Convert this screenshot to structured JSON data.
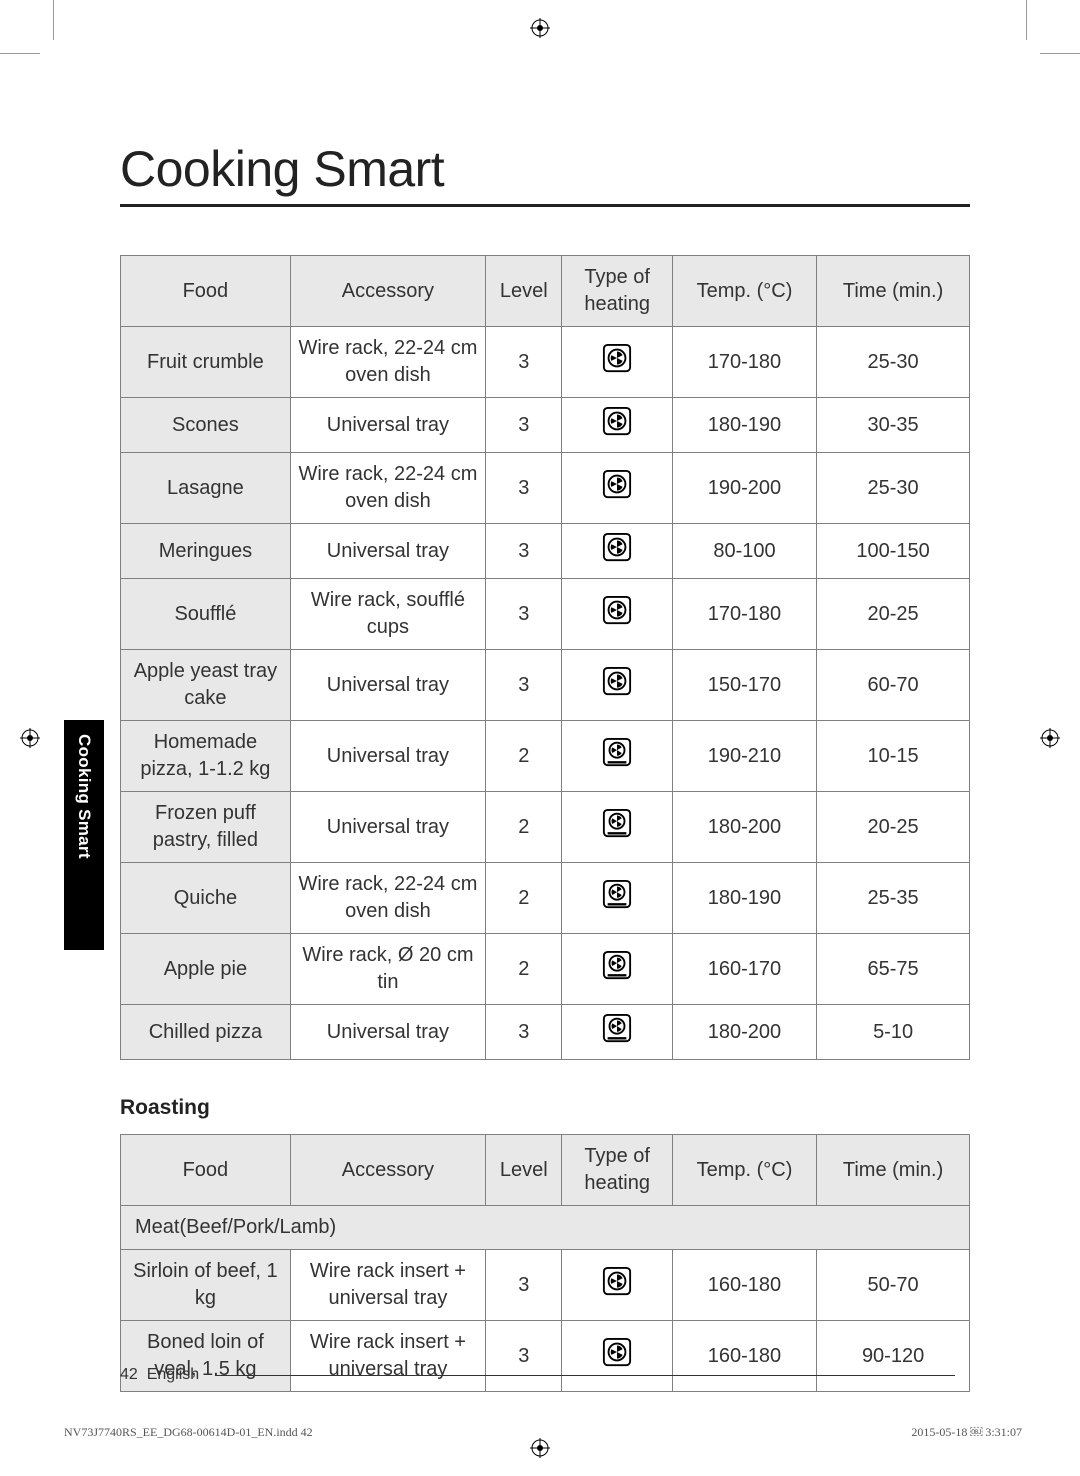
{
  "title": "Cooking Smart",
  "side_tab": "Cooking Smart",
  "table1": {
    "headers": [
      "Food",
      "Accessory",
      "Level",
      "Type of heating",
      "Temp. (°C)",
      "Time (min.)"
    ],
    "rows": [
      {
        "food": "Fruit crumble",
        "accessory": "Wire rack, 22-24 cm oven dish",
        "level": "3",
        "heat_icon": "fan-box",
        "temp": "170-180",
        "time": "25-30"
      },
      {
        "food": "Scones",
        "accessory": "Universal tray",
        "level": "3",
        "heat_icon": "fan-box",
        "temp": "180-190",
        "time": "30-35"
      },
      {
        "food": "Lasagne",
        "accessory": "Wire rack, 22-24 cm oven dish",
        "level": "3",
        "heat_icon": "fan-box",
        "temp": "190-200",
        "time": "25-30"
      },
      {
        "food": "Meringues",
        "accessory": "Universal tray",
        "level": "3",
        "heat_icon": "fan-box",
        "temp": "80-100",
        "time": "100-150"
      },
      {
        "food": "Soufflé",
        "accessory": "Wire rack, soufflé cups",
        "level": "3",
        "heat_icon": "fan-box",
        "temp": "170-180",
        "time": "20-25"
      },
      {
        "food": "Apple yeast tray cake",
        "accessory": "Universal tray",
        "level": "3",
        "heat_icon": "fan-box",
        "temp": "150-170",
        "time": "60-70"
      },
      {
        "food": "Homemade pizza, 1-1.2 kg",
        "accessory": "Universal tray",
        "level": "2",
        "heat_icon": "fan-bottom",
        "temp": "190-210",
        "time": "10-15"
      },
      {
        "food": "Frozen puff pastry, filled",
        "accessory": "Universal tray",
        "level": "2",
        "heat_icon": "fan-bottom",
        "temp": "180-200",
        "time": "20-25"
      },
      {
        "food": "Quiche",
        "accessory": "Wire rack, 22-24 cm oven dish",
        "level": "2",
        "heat_icon": "fan-bottom",
        "temp": "180-190",
        "time": "25-35"
      },
      {
        "food": "Apple pie",
        "accessory": "Wire rack, Ø 20 cm tin",
        "level": "2",
        "heat_icon": "fan-bottom",
        "temp": "160-170",
        "time": "65-75"
      },
      {
        "food": "Chilled pizza",
        "accessory": "Universal tray",
        "level": "3",
        "heat_icon": "fan-bottom",
        "temp": "180-200",
        "time": "5-10"
      }
    ]
  },
  "roasting_heading": "Roasting",
  "table2": {
    "headers": [
      "Food",
      "Accessory",
      "Level",
      "Type of heating",
      "Temp. (°C)",
      "Time (min.)"
    ],
    "section_label": "Meat(Beef/Pork/Lamb)",
    "rows": [
      {
        "food": "Sirloin of beef, 1 kg",
        "accessory": "Wire rack insert + universal tray",
        "level": "3",
        "heat_icon": "fan-box",
        "temp": "160-180",
        "time": "50-70"
      },
      {
        "food": "Boned loin of veal, 1.5 kg",
        "accessory": "Wire rack insert + universal tray",
        "level": "3",
        "heat_icon": "fan-box",
        "temp": "160-180",
        "time": "90-120"
      }
    ]
  },
  "footer_page": "42",
  "footer_lang": "English",
  "meta_left": "NV73J7740RS_EE_DG68-00614D-01_EN.indd   42",
  "meta_right": "2015-05-18   ￼ 3:31:07",
  "colors": {
    "text": "#222222",
    "header_bg": "#e8e8e8",
    "border": "#808080",
    "tab_bg": "#000000",
    "tab_text": "#ffffff"
  }
}
